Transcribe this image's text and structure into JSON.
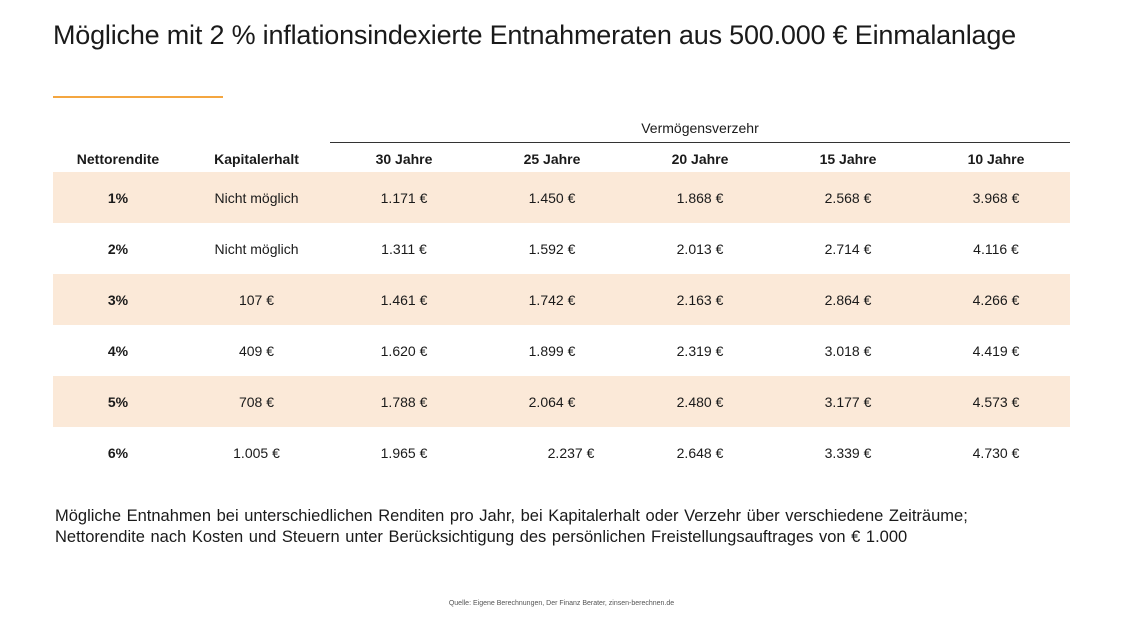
{
  "title": "Mögliche mit 2 % inflationsindexierte Entnahmeraten aus 500.000 € Einmalanlage",
  "accent_color": "#f4a640",
  "stripe_color": "#fbe9d8",
  "table": {
    "group_label": "Vermögensverzehr",
    "headers": [
      "Nettorendite",
      "Kapitalerhalt",
      "30 Jahre",
      "25 Jahre",
      "20 Jahre",
      "15 Jahre",
      "10 Jahre"
    ],
    "rows": [
      [
        "1%",
        "Nicht möglich",
        "1.171 €",
        "1.450 €",
        "1.868 €",
        "2.568 €",
        "3.968 €"
      ],
      [
        "2%",
        "Nicht möglich",
        "1.311 €",
        "1.592 €",
        "2.013 €",
        "2.714 €",
        "4.116 €"
      ],
      [
        "3%",
        "107 €",
        "1.461 €",
        "1.742 €",
        "2.163 €",
        "2.864 €",
        "4.266 €"
      ],
      [
        "4%",
        "409 €",
        "1.620 €",
        "1.899 €",
        "2.319 €",
        "3.018 €",
        "4.419 €"
      ],
      [
        "5%",
        "708 €",
        "1.788 €",
        "2.064 €",
        "2.480 €",
        "3.177 €",
        "4.573 €"
      ],
      [
        "6%",
        "1.005 €",
        "1.965 €",
        "2.237 €",
        "2.648 €",
        "3.339 €",
        "4.730 €"
      ]
    ]
  },
  "note": {
    "line1": "Mögliche Entnahmen bei unterschiedlichen Renditen pro Jahr, bei Kapitalerhalt oder Verzehr über verschiedene Zeiträume;",
    "line2": "Nettorendite nach Kosten und Steuern unter Berücksichtigung des persönlichen Freistellungsauftrages von € 1.000"
  },
  "source": "Quelle: Eigene Berechnungen, Der Finanz Berater, zinsen-berechnen.de"
}
